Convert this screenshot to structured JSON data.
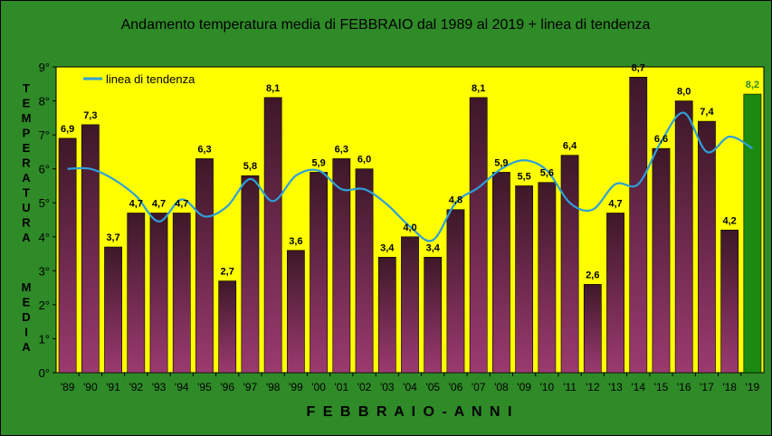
{
  "chart_data": {
    "type": "bar",
    "title": "Andamento temperatura media di FEBBRAIO dal 1989 al 2019 + linea di tendenza",
    "xlabel": "F E B B R A I O  -  A N N I",
    "ylabel_top": "TEMPERATURA",
    "ylabel_bottom": "MEDIA",
    "ylim": [
      0,
      9
    ],
    "yticks": [
      "0°",
      "1°",
      "2°",
      "3°",
      "4°",
      "5°",
      "6°",
      "7°",
      "8°",
      "9°"
    ],
    "categories": [
      "'89",
      "'90",
      "'91",
      "'92",
      "'93",
      "'94",
      "'95",
      "'96",
      "'97",
      "'98",
      "'99",
      "'00",
      "'01",
      "'02",
      "'03",
      "'04",
      "'05",
      "'06",
      "'07",
      "'08",
      "'09",
      "'10",
      "'11",
      "'12",
      "'13",
      "'14",
      "'15",
      "'16",
      "'17",
      "'18",
      "'19"
    ],
    "values": [
      6.9,
      7.3,
      3.7,
      4.7,
      4.7,
      4.7,
      6.3,
      2.7,
      5.8,
      8.1,
      3.6,
      5.9,
      6.3,
      6.0,
      3.4,
      4.0,
      3.4,
      4.8,
      8.1,
      5.9,
      5.5,
      5.6,
      6.4,
      2.6,
      4.7,
      8.7,
      6.6,
      8.0,
      7.4,
      4.2,
      8.2
    ],
    "labels": [
      "6,9",
      "7,3",
      "3,7",
      "4,7",
      "4,7",
      "4,7",
      "6,3",
      "2,7",
      "5,8",
      "8,1",
      "3,6",
      "5,9",
      "6,3",
      "6,0",
      "3,4",
      "4,0",
      "3,4",
      "4,8",
      "8,1",
      "5,9",
      "5,5",
      "5,6",
      "6,4",
      "2,6",
      "4,7",
      "8,7",
      "6,6",
      "8,0",
      "7,4",
      "4,2",
      "8,2"
    ],
    "trend": {
      "name": "linea di tendenza",
      "values": [
        6.0,
        6.0,
        5.7,
        5.2,
        4.45,
        5.1,
        4.6,
        4.9,
        5.7,
        5.05,
        5.8,
        5.95,
        5.4,
        5.4,
        4.95,
        4.3,
        3.9,
        5.0,
        5.45,
        6.0,
        6.25,
        5.95,
        5.0,
        4.8,
        5.55,
        5.55,
        6.8,
        7.65,
        6.5,
        6.95,
        6.6
      ]
    },
    "highlight_index": 30,
    "legend_position": "top-left",
    "grid": false
  },
  "colors": {
    "background": "#2f8a28",
    "plot_bg": "#ffff00",
    "bar_top": "#3d1828",
    "bar_bottom": "#9b3a70",
    "highlight_bar": "#1a8a10",
    "trend": "#2f9fd8",
    "highlight_label": "#2f8a28"
  }
}
